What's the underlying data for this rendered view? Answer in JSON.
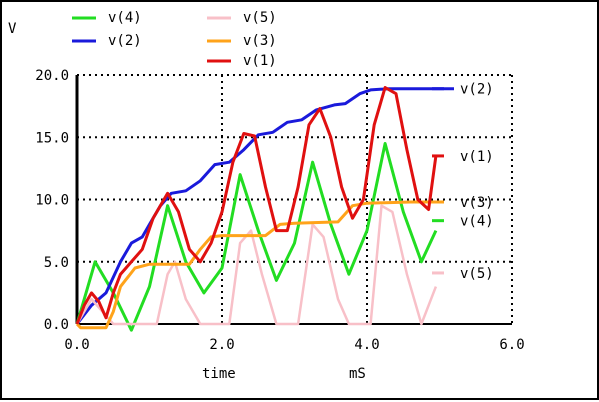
{
  "chart_data": {
    "type": "line",
    "ylabel": "V",
    "xlabel": "time",
    "xunit": "mS",
    "xlim": [
      0,
      6
    ],
    "ylim": [
      0,
      20
    ],
    "xticks": [
      0,
      2,
      4,
      6
    ],
    "yticks": [
      0,
      5,
      10,
      15,
      20
    ],
    "xtick_labels": [
      "0.0",
      "2.0",
      "4.0",
      "6.0"
    ],
    "ytick_labels": [
      "0.0",
      "5.0",
      "10.0",
      "15.0",
      "20.0"
    ],
    "grid": true,
    "legend_position": "top",
    "series": [
      {
        "name": "v(4)",
        "color": "#22dd22",
        "points": [
          [
            0,
            0
          ],
          [
            0.25,
            5
          ],
          [
            0.5,
            2.5
          ],
          [
            0.75,
            -0.5
          ],
          [
            1,
            3
          ],
          [
            1.25,
            9.5
          ],
          [
            1.5,
            5
          ],
          [
            1.75,
            2.5
          ],
          [
            2,
            4.5
          ],
          [
            2.25,
            12
          ],
          [
            2.5,
            7.5
          ],
          [
            2.75,
            3.5
          ],
          [
            3,
            6.5
          ],
          [
            3.25,
            13
          ],
          [
            3.5,
            8
          ],
          [
            3.75,
            4
          ],
          [
            4,
            7.5
          ],
          [
            4.25,
            14.5
          ],
          [
            4.5,
            9
          ],
          [
            4.75,
            5
          ],
          [
            4.95,
            7.5
          ]
        ]
      },
      {
        "name": "v(2)",
        "color": "#1a1adb",
        "points": [
          [
            0,
            0
          ],
          [
            0.2,
            1.5
          ],
          [
            0.4,
            2.5
          ],
          [
            0.6,
            5
          ],
          [
            0.75,
            6.5
          ],
          [
            0.9,
            7
          ],
          [
            1.0,
            8
          ],
          [
            1.15,
            9.5
          ],
          [
            1.3,
            10.5
          ],
          [
            1.5,
            10.7
          ],
          [
            1.7,
            11.5
          ],
          [
            1.9,
            12.8
          ],
          [
            2.1,
            13
          ],
          [
            2.3,
            14
          ],
          [
            2.5,
            15.2
          ],
          [
            2.7,
            15.4
          ],
          [
            2.9,
            16.2
          ],
          [
            3.1,
            16.4
          ],
          [
            3.3,
            17.2
          ],
          [
            3.55,
            17.6
          ],
          [
            3.7,
            17.7
          ],
          [
            3.9,
            18.5
          ],
          [
            4.05,
            18.8
          ],
          [
            4.3,
            18.9
          ],
          [
            5.2,
            18.9
          ]
        ]
      },
      {
        "name": "v(5)",
        "color": "#f8c0c8",
        "points": [
          [
            0,
            0
          ],
          [
            0.2,
            2.0
          ],
          [
            0.35,
            1
          ],
          [
            0.5,
            0
          ],
          [
            1.1,
            0
          ],
          [
            1.25,
            4
          ],
          [
            1.35,
            5
          ],
          [
            1.5,
            2
          ],
          [
            1.7,
            0
          ],
          [
            2.1,
            0
          ],
          [
            2.25,
            6.5
          ],
          [
            2.4,
            7.5
          ],
          [
            2.55,
            4
          ],
          [
            2.75,
            0
          ],
          [
            3.05,
            0
          ],
          [
            3.25,
            8
          ],
          [
            3.4,
            7
          ],
          [
            3.6,
            2
          ],
          [
            3.75,
            0
          ],
          [
            4.05,
            0
          ],
          [
            4.2,
            9.5
          ],
          [
            4.35,
            9
          ],
          [
            4.55,
            4
          ],
          [
            4.75,
            0
          ],
          [
            4.95,
            3
          ]
        ]
      },
      {
        "name": "v(3)",
        "color": "#ffa31a",
        "points": [
          [
            0,
            0
          ],
          [
            0.05,
            -0.3
          ],
          [
            0.4,
            -0.3
          ],
          [
            0.5,
            1
          ],
          [
            0.6,
            3
          ],
          [
            0.8,
            4.5
          ],
          [
            1,
            4.8
          ],
          [
            1.55,
            4.8
          ],
          [
            1.7,
            6
          ],
          [
            1.85,
            7
          ],
          [
            2,
            7.1
          ],
          [
            2.6,
            7.1
          ],
          [
            2.8,
            8
          ],
          [
            3.0,
            8.1
          ],
          [
            3.6,
            8.2
          ],
          [
            3.8,
            9.5
          ],
          [
            4.0,
            9.7
          ],
          [
            4.6,
            9.8
          ],
          [
            5.0,
            9.8
          ]
        ]
      },
      {
        "name": "v(1)",
        "color": "#e01010",
        "points": [
          [
            0,
            0
          ],
          [
            0.1,
            1.5
          ],
          [
            0.2,
            2.5
          ],
          [
            0.3,
            1.8
          ],
          [
            0.4,
            0.5
          ],
          [
            0.5,
            2.5
          ],
          [
            0.6,
            4
          ],
          [
            0.75,
            5
          ],
          [
            0.9,
            6
          ],
          [
            1.05,
            8.5
          ],
          [
            1.25,
            10.5
          ],
          [
            1.4,
            9
          ],
          [
            1.55,
            6
          ],
          [
            1.7,
            5
          ],
          [
            1.85,
            6.5
          ],
          [
            2.0,
            9
          ],
          [
            2.15,
            13
          ],
          [
            2.3,
            15.3
          ],
          [
            2.45,
            15.1
          ],
          [
            2.6,
            11
          ],
          [
            2.75,
            7.5
          ],
          [
            2.9,
            7.5
          ],
          [
            3.05,
            11
          ],
          [
            3.2,
            16
          ],
          [
            3.35,
            17.3
          ],
          [
            3.5,
            15
          ],
          [
            3.65,
            11
          ],
          [
            3.8,
            8.5
          ],
          [
            3.95,
            10
          ],
          [
            4.1,
            16
          ],
          [
            4.25,
            19
          ],
          [
            4.4,
            18.5
          ],
          [
            4.55,
            14
          ],
          [
            4.7,
            10
          ],
          [
            4.85,
            9.2
          ],
          [
            4.95,
            13.5
          ]
        ]
      }
    ],
    "end_labels": [
      {
        "series": "v(2)",
        "text": "v(2)",
        "y": 18.9
      },
      {
        "series": "v(1)",
        "text": "v(1)",
        "y": 13.5
      },
      {
        "series": "v(3)",
        "text": "v(3)",
        "y": 9.8
      },
      {
        "series": "v(4)",
        "text": "v(4)",
        "y": 8.3
      },
      {
        "series": "v(5)",
        "text": "v(5)",
        "y": 4.1
      }
    ]
  }
}
